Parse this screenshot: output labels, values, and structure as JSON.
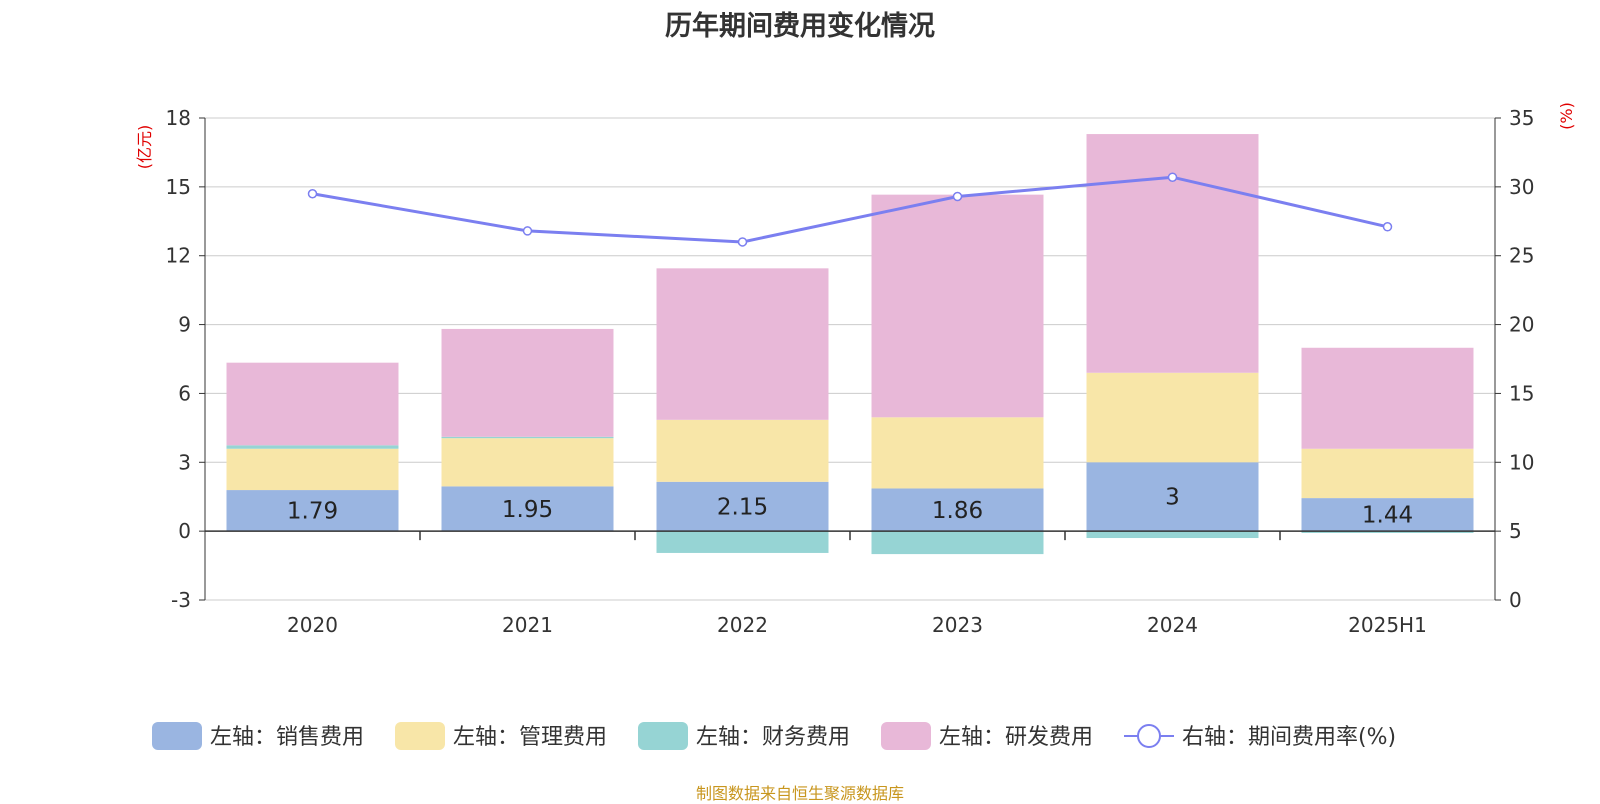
{
  "title": "历年期间费用变化情况",
  "footer": "制图数据来自恒生聚源数据库",
  "chart_data": {
    "type": "bar",
    "stacked": true,
    "categories": [
      "2020",
      "2021",
      "2022",
      "2023",
      "2024",
      "2025H1"
    ],
    "left_axis": {
      "unit": "(亿元)",
      "ylim": [
        -3,
        18
      ],
      "ticks": [
        -3,
        0,
        3,
        6,
        9,
        12,
        15,
        18
      ]
    },
    "right_axis": {
      "unit": "(%)",
      "ylim": [
        0,
        35
      ],
      "ticks": [
        0,
        5,
        10,
        15,
        20,
        25,
        30,
        35
      ]
    },
    "series": [
      {
        "name": "左轴：销售费用",
        "type": "bar",
        "axis": "left",
        "color": "#9ab5e1",
        "values": [
          1.79,
          1.95,
          2.15,
          1.86,
          3,
          1.44
        ],
        "data_labels": [
          "1.79",
          "1.95",
          "2.15",
          "1.86",
          "3",
          "1.44"
        ]
      },
      {
        "name": "左轴：管理费用",
        "type": "bar",
        "axis": "left",
        "color": "#f8e6a8",
        "values": [
          1.8,
          2.1,
          2.7,
          3.1,
          3.9,
          2.15
        ]
      },
      {
        "name": "左轴：财务费用",
        "type": "bar",
        "axis": "left",
        "color": "#96d4d4",
        "values": [
          0.15,
          0.06,
          -0.95,
          -1.0,
          -0.3,
          -0.08
        ]
      },
      {
        "name": "左轴：研发费用",
        "type": "bar",
        "axis": "left",
        "color": "#e8b8d8",
        "values": [
          3.6,
          4.7,
          6.6,
          9.7,
          10.4,
          4.4
        ]
      },
      {
        "name": "右轴：期间费用率(%)",
        "type": "line",
        "axis": "right",
        "color": "#7b7ff0",
        "values": [
          29.5,
          26.8,
          26.0,
          29.3,
          30.7,
          27.1
        ]
      }
    ],
    "grid": true,
    "legend_position": "bottom"
  }
}
